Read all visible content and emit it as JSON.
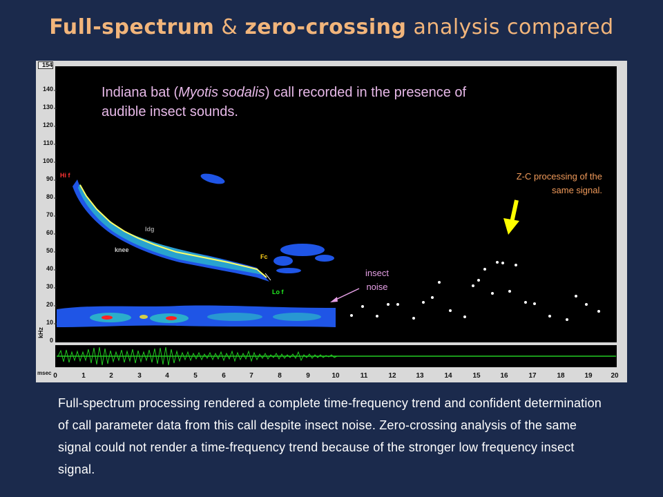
{
  "title": {
    "part1": "Full-spectrum",
    "amp": " & ",
    "part2": "zero-crossing",
    "part3": " analysis compared"
  },
  "plot": {
    "y_ticks": [
      "140",
      "130",
      "120",
      "110",
      "100",
      "90",
      "80",
      "70",
      "60",
      "50",
      "40",
      "30",
      "20",
      "10",
      "0"
    ],
    "y_top": "154",
    "y_unit": "kHz",
    "x_unit": "msec",
    "x_ticks": [
      "0",
      "1",
      "2",
      "3",
      "4",
      "5",
      "6",
      "7",
      "8",
      "9",
      "10",
      "11",
      "12",
      "13",
      "14",
      "15",
      "16",
      "17",
      "18",
      "19",
      "20"
    ],
    "annotation_pre": "Indiana bat (",
    "annotation_italic": "Myotis sodalis",
    "annotation_post": ") call recorded in the presence of audible insect sounds.",
    "zc_label_line1": "Z-C processing of the",
    "zc_label_line2": "same signal.",
    "insect_label_line1": "insect",
    "insect_label_line2": "noise",
    "call_labels": {
      "hif": "Hi f",
      "ldg": "ldg",
      "knee": "knee",
      "fc": "Fc",
      "lof": "Lo f"
    },
    "colors": {
      "spectrogram": "#1f55e6",
      "trend": "#ffff66",
      "waveform": "#22cc22",
      "zc_dots": "#ffffff",
      "arrow": "#ffff00"
    }
  },
  "caption": "Full-spectrum processing rendered a complete time-frequency trend and confident determination of call parameter data from this call despite insect noise. Zero-crossing analysis of the same signal could not render a time-frequency trend because of the stronger low frequency insect signal."
}
